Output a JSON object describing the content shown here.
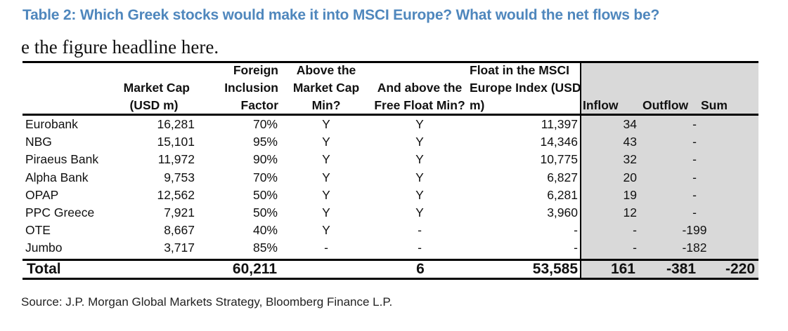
{
  "title": "Table 2: Which Greek stocks would make it into MSCI Europe? What would the net flows be?",
  "subheadline": "e the figure headline here.",
  "colors": {
    "title": "#4f87bd",
    "flows_background": "#d9d9d9"
  },
  "table": {
    "headers": {
      "market_cap": [
        "Market Cap",
        "(USD m)"
      ],
      "foreign_inclusion": [
        "Foreign",
        "Inclusion",
        "Factor"
      ],
      "above_mcap": [
        "Above the",
        "Market Cap",
        "Min?"
      ],
      "above_ff": [
        "And above the",
        "Free Float Min?"
      ],
      "float_msci": [
        "Float in the MSCI",
        "Europe Index (USD",
        "m)"
      ],
      "inflow": "Inflow",
      "outflow": "Outflow",
      "sum": "Sum"
    },
    "rows": [
      {
        "name": "Eurobank",
        "market_cap": "16,281",
        "fif": "70%",
        "above_mcap": "Y",
        "above_ff": "Y",
        "float": "11,397",
        "inflow": "34",
        "outflow": "-"
      },
      {
        "name": "NBG",
        "market_cap": "15,101",
        "fif": "95%",
        "above_mcap": "Y",
        "above_ff": "Y",
        "float": "14,346",
        "inflow": "43",
        "outflow": "-"
      },
      {
        "name": "Piraeus Bank",
        "market_cap": "11,972",
        "fif": "90%",
        "above_mcap": "Y",
        "above_ff": "Y",
        "float": "10,775",
        "inflow": "32",
        "outflow": "-"
      },
      {
        "name": "Alpha Bank",
        "market_cap": "9,753",
        "fif": "70%",
        "above_mcap": "Y",
        "above_ff": "Y",
        "float": "6,827",
        "inflow": "20",
        "outflow": "-"
      },
      {
        "name": "OPAP",
        "market_cap": "12,562",
        "fif": "50%",
        "above_mcap": "Y",
        "above_ff": "Y",
        "float": "6,281",
        "inflow": "19",
        "outflow": "-"
      },
      {
        "name": "PPC Greece",
        "market_cap": "7,921",
        "fif": "50%",
        "above_mcap": "Y",
        "above_ff": "Y",
        "float": "3,960",
        "inflow": "12",
        "outflow": "-"
      },
      {
        "name": "OTE",
        "market_cap": "8,667",
        "fif": "40%",
        "above_mcap": "Y",
        "above_ff": "-",
        "float": "-",
        "inflow": "-",
        "outflow": "-199"
      },
      {
        "name": "Jumbo",
        "market_cap": "3,717",
        "fif": "85%",
        "above_mcap": "-",
        "above_ff": "-",
        "float": "-",
        "inflow": "-",
        "outflow": "-182"
      }
    ],
    "total": {
      "label": "Total",
      "fif": "60,211",
      "above_ff": "6",
      "float": "53,585",
      "inflow": "161",
      "outflow": "-381",
      "sum": "-220"
    }
  },
  "source": "Source: J.P. Morgan Global Markets Strategy, Bloomberg Finance L.P."
}
